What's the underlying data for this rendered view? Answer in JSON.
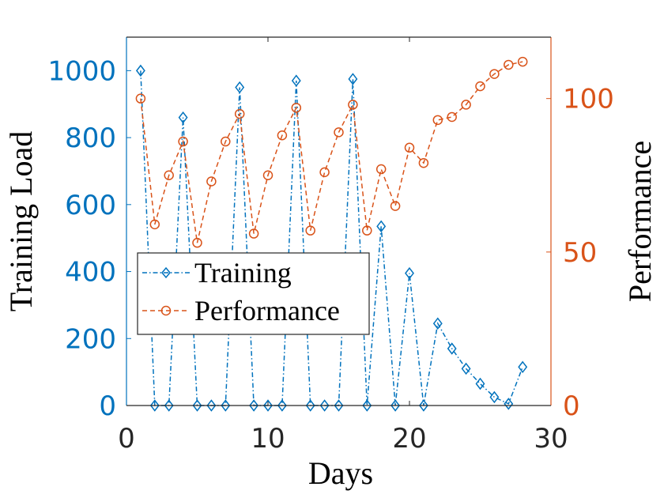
{
  "chart_data": {
    "type": "line",
    "title": "",
    "xlabel": "Days",
    "ylabel_left": "Training Load",
    "ylabel_right": "Performance",
    "xlim": [
      0,
      30
    ],
    "ylim_left": [
      0,
      1100
    ],
    "ylim_right": [
      0,
      120
    ],
    "xticks": [
      0,
      10,
      20,
      30
    ],
    "yticks_left": [
      0,
      200,
      400,
      600,
      800,
      1000
    ],
    "yticks_right": [
      0,
      50,
      100
    ],
    "xtick_labels": [
      "0",
      "10",
      "20",
      "30"
    ],
    "ytick_left_labels": [
      "0",
      "200",
      "400",
      "600",
      "800",
      "1000"
    ],
    "ytick_right_labels": [
      "0",
      "50",
      "100"
    ],
    "grid": false,
    "legend_position": "center-left",
    "colors": {
      "training": "#0072BD",
      "performance": "#D95319",
      "axis": "#262626"
    },
    "series": [
      {
        "name": "Training",
        "axis": "left",
        "marker": "diamond",
        "line_style": "dash-dot",
        "x": [
          1,
          2,
          3,
          4,
          5,
          6,
          7,
          8,
          9,
          10,
          11,
          12,
          13,
          14,
          15,
          16,
          17,
          18,
          19,
          20,
          21,
          22,
          23,
          24,
          25,
          26,
          27,
          28
        ],
        "values": [
          1000,
          0,
          0,
          860,
          0,
          0,
          0,
          950,
          0,
          0,
          0,
          970,
          0,
          0,
          0,
          975,
          0,
          535,
          0,
          395,
          0,
          245,
          170,
          110,
          65,
          25,
          5,
          115
        ]
      },
      {
        "name": "Performance",
        "axis": "right",
        "marker": "circle",
        "line_style": "dashed",
        "x": [
          1,
          2,
          3,
          4,
          5,
          6,
          7,
          8,
          9,
          10,
          11,
          12,
          13,
          14,
          15,
          16,
          17,
          18,
          19,
          20,
          21,
          22,
          23,
          24,
          25,
          26,
          27,
          28
        ],
        "values": [
          100,
          59,
          75,
          86,
          53,
          73,
          86,
          95,
          56,
          75,
          88,
          97,
          57,
          76,
          89,
          98,
          57,
          77,
          65,
          84,
          79,
          93,
          94,
          98,
          104,
          108,
          111,
          112
        ]
      }
    ],
    "legend": [
      "Training",
      "Performance"
    ]
  }
}
